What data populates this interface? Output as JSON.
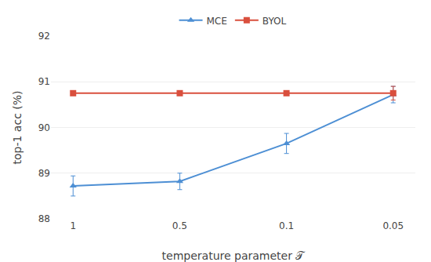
{
  "chart_data": {
    "type": "line",
    "categories": [
      "1",
      "0.5",
      "0.1",
      "0.05"
    ],
    "series": [
      {
        "name": "MCE",
        "color": "#4d8fd4",
        "marker": "triangle-up",
        "values": [
          88.72,
          88.82,
          89.65,
          90.72
        ],
        "errors": [
          0.22,
          0.18,
          0.22,
          0.18
        ]
      },
      {
        "name": "BYOL",
        "color": "#d94f3d",
        "marker": "square",
        "values": [
          90.75,
          90.75,
          90.75,
          90.75
        ],
        "errors": [
          0.0,
          0.0,
          0.0,
          0.15
        ]
      }
    ],
    "xlabel": "temperature parameter 𝒯",
    "ylabel": "top-1 acc (%)",
    "ylim": [
      88.0,
      92.0
    ],
    "yticks": [
      88,
      89,
      90,
      91,
      92
    ],
    "grid": true,
    "legend": "top"
  }
}
